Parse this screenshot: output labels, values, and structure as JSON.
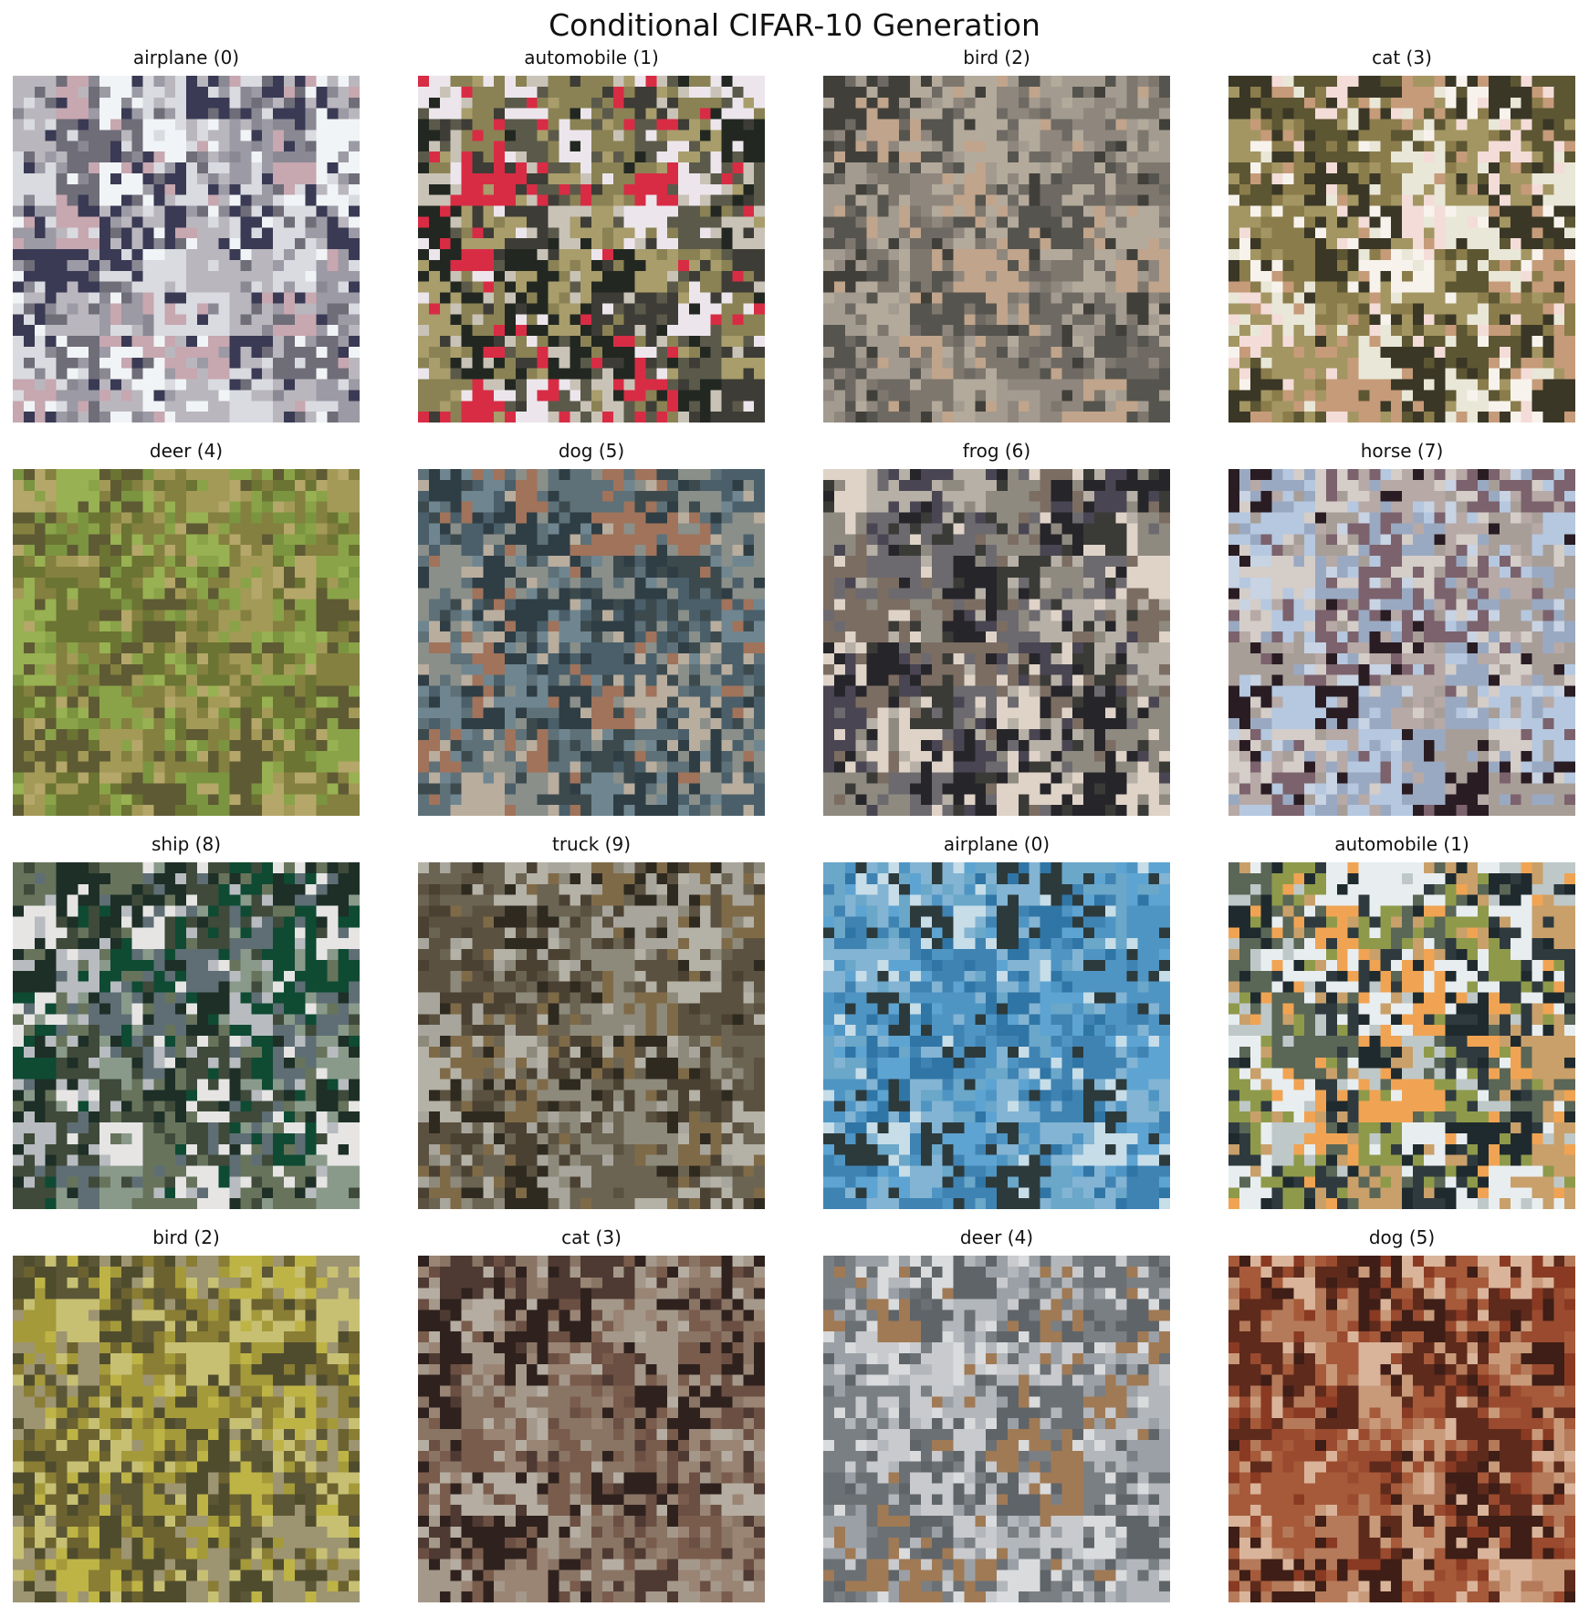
{
  "title": "Conditional CIFAR-10 Generation",
  "panels": [
    {
      "label": "airplane (0)",
      "palette": [
        "#9c9aa4",
        "#b9b7bd",
        "#d9dbe0",
        "#f1f4f6",
        "#6f6d78",
        "#3a3a55",
        "#c7a7b0",
        "#8a8993"
      ]
    },
    {
      "label": "automobile (1)",
      "palette": [
        "#ece6ec",
        "#d82c45",
        "#3d3c36",
        "#8a8254",
        "#5b5a4a",
        "#c9c3b7",
        "#222821",
        "#a89d6b"
      ]
    },
    {
      "label": "bird (2)",
      "palette": [
        "#8f877e",
        "#a39b8f",
        "#6e6a63",
        "#c0a48b",
        "#56544e",
        "#b3aa9c",
        "#7d776e",
        "#413f3a"
      ]
    },
    {
      "label": "cat (3)",
      "palette": [
        "#f7f3ec",
        "#f4dcd8",
        "#8b7c4b",
        "#a39662",
        "#5c5633",
        "#c69b79",
        "#3a3726",
        "#e9e7d8"
      ]
    },
    {
      "label": "deer (4)",
      "palette": [
        "#8aa348",
        "#98b152",
        "#7a9440",
        "#a49a57",
        "#6b7432",
        "#b5a769",
        "#5e5a34",
        "#84803f"
      ]
    },
    {
      "label": "dog (5)",
      "palette": [
        "#5e7078",
        "#4a5f69",
        "#8a8f8a",
        "#a0735a",
        "#2f3d44",
        "#b9ad9e",
        "#6f8690",
        "#3c4a4e"
      ]
    },
    {
      "label": "frog (6)",
      "palette": [
        "#4a4552",
        "#6c6a6e",
        "#b6b0a6",
        "#dfd3c8",
        "#3a3b36",
        "#8f8a80",
        "#7c6d62",
        "#26252a"
      ]
    },
    {
      "label": "horse (7)",
      "palette": [
        "#b5c8e0",
        "#c8d3e3",
        "#2a1c23",
        "#b7a9a6",
        "#a89e98",
        "#d4cdc8",
        "#7b626c",
        "#9aa9c2"
      ]
    },
    {
      "label": "ship (8)",
      "palette": [
        "#3f4a3a",
        "#67745b",
        "#b8bcc0",
        "#e6e5e4",
        "#1d2f27",
        "#0f4a33",
        "#8a9a8a",
        "#5e6e74"
      ]
    },
    {
      "label": "truck (9)",
      "palette": [
        "#6b6453",
        "#8e8a7b",
        "#a8a69c",
        "#4a4132",
        "#2f2a20",
        "#7f6a48",
        "#b4b1a6",
        "#5b5140"
      ]
    },
    {
      "label": "airplane (0)",
      "palette": [
        "#4f95c4",
        "#5da4d2",
        "#3f83b3",
        "#83b4d3",
        "#2c3a3c",
        "#c7dde8",
        "#2f75a5",
        "#6aa7c9"
      ]
    },
    {
      "label": "automobile (1)",
      "palette": [
        "#e8eef0",
        "#2f3a3f",
        "#8e9a4a",
        "#c9a06a",
        "#f0a453",
        "#1f2a2e",
        "#5a6656",
        "#bfc8c9"
      ]
    },
    {
      "label": "bird (2)",
      "palette": [
        "#8a7d34",
        "#a59a3a",
        "#6b6230",
        "#beb446",
        "#4f4c2e",
        "#9d9472",
        "#c7c073",
        "#5b5636"
      ]
    },
    {
      "label": "cat (3)",
      "palette": [
        "#6b4f42",
        "#8a7565",
        "#a4988a",
        "#4e3a32",
        "#2f221e",
        "#b5ada1",
        "#7a5c4c",
        "#9a8474"
      ]
    },
    {
      "label": "deer (4)",
      "palette": [
        "#9aa0a6",
        "#b3b7bb",
        "#7a7f83",
        "#c8cacd",
        "#5f6468",
        "#a07a55",
        "#d9dbdd",
        "#6b7075"
      ]
    },
    {
      "label": "dog (5)",
      "palette": [
        "#8a3a22",
        "#a65a3a",
        "#c99a7a",
        "#5e2a1c",
        "#b57a5a",
        "#d9b49a",
        "#3e1e16",
        "#9a4a2e"
      ]
    }
  ]
}
